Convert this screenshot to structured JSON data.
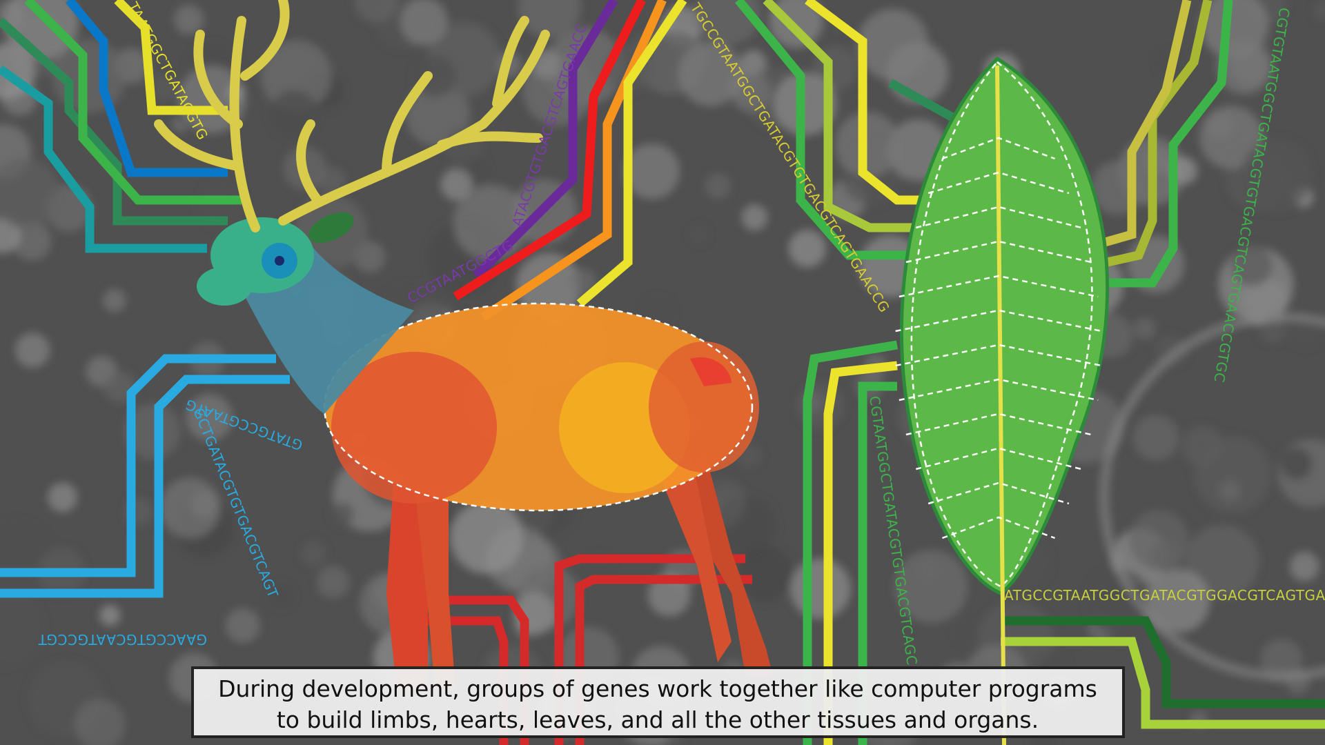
{
  "dna_labels": [
    "TAATGGCTGATACGTG",
    "ATACGTGTGACGTCAGTGAACC",
    "CCGTAATGGCTG",
    "TGCCGTAATGGCTGATACGTGTGACGTCAGTGAACCG",
    "GTATGCCGTAATG",
    "GCTGATACGTGTGACGTCAGT",
    "GAACCGTGCAATGCCGT",
    "CGTGTAATGGCTGATACGTGTGACGTCAGTGAACCGTGC",
    "CGTAATGGCTGATACGTGTGACGTCAGC",
    "ATGCCGTAATGGCTGATACGTGGACGTCAGTGAA"
  ],
  "caption": {
    "lines": [
      "During development, groups of genes work together like computer programs",
      "to build limbs, hearts, leaves, and all the other tissues and organs."
    ]
  }
}
